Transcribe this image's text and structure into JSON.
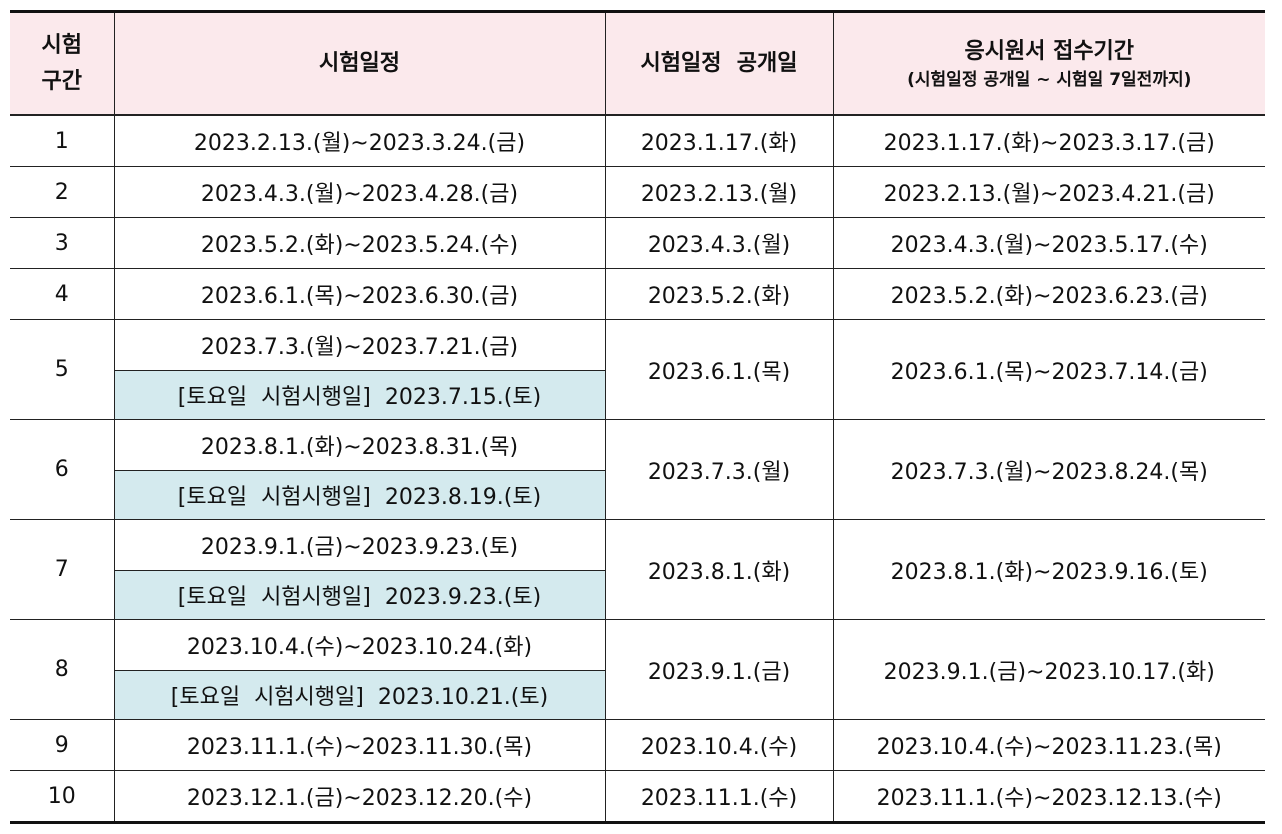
{
  "header": {
    "col1": "시험\n구간",
    "col1_line1": "시험",
    "col1_line2": "구간",
    "col2": "시험일정",
    "col3": "시험일정  공개일",
    "col4_line1": "응시원서 접수기간",
    "col4_line2": "(시험일정 공개일 ~ 시험일 7일전까지)"
  },
  "rows": [
    {
      "no": "1",
      "schedule": "2023.2.13.(월)~2023.3.24.(금)",
      "saturday": "",
      "release": "2023.1.17.(화)",
      "application": "2023.1.17.(화)~2023.3.17.(금)"
    },
    {
      "no": "2",
      "schedule": "2023.4.3.(월)~2023.4.28.(금)",
      "saturday": "",
      "release": "2023.2.13.(월)",
      "application": "2023.2.13.(월)~2023.4.21.(금)"
    },
    {
      "no": "3",
      "schedule": "2023.5.2.(화)~2023.5.24.(수)",
      "saturday": "",
      "release": "2023.4.3.(월)",
      "application": "2023.4.3.(월)~2023.5.17.(수)"
    },
    {
      "no": "4",
      "schedule": "2023.6.1.(목)~2023.6.30.(금)",
      "saturday": "",
      "release": "2023.5.2.(화)",
      "application": "2023.5.2.(화)~2023.6.23.(금)"
    },
    {
      "no": "5",
      "schedule": "2023.7.3.(월)~2023.7.21.(금)",
      "saturday": "[토요일  시험시행일]  2023.7.15.(토)",
      "release": "2023.6.1.(목)",
      "application": "2023.6.1.(목)~2023.7.14.(금)"
    },
    {
      "no": "6",
      "schedule": "2023.8.1.(화)~2023.8.31.(목)",
      "saturday": "[토요일  시험시행일]  2023.8.19.(토)",
      "release": "2023.7.3.(월)",
      "application": "2023.7.3.(월)~2023.8.24.(목)"
    },
    {
      "no": "7",
      "schedule": "2023.9.1.(금)~2023.9.23.(토)",
      "saturday": "[토요일  시험시행일]  2023.9.23.(토)",
      "release": "2023.8.1.(화)",
      "application": "2023.8.1.(화)~2023.9.16.(토)"
    },
    {
      "no": "8",
      "schedule": "2023.10.4.(수)~2023.10.24.(화)",
      "saturday": "[토요일  시험시행일]  2023.10.21.(토)",
      "release": "2023.9.1.(금)",
      "application": "2023.9.1.(금)~2023.10.17.(화)"
    },
    {
      "no": "9",
      "schedule": "2023.11.1.(수)~2023.11.30.(목)",
      "saturday": "",
      "release": "2023.10.4.(수)",
      "application": "2023.10.4.(수)~2023.11.23.(목)"
    },
    {
      "no": "10",
      "schedule": "2023.12.1.(금)~2023.12.20.(수)",
      "saturday": "",
      "release": "2023.11.1.(수)",
      "application": "2023.11.1.(수)~2023.12.13.(수)"
    }
  ],
  "colors": {
    "header_bg": "#fbe9ec",
    "saturday_bg": "#d4eaee",
    "border": "#222222"
  }
}
